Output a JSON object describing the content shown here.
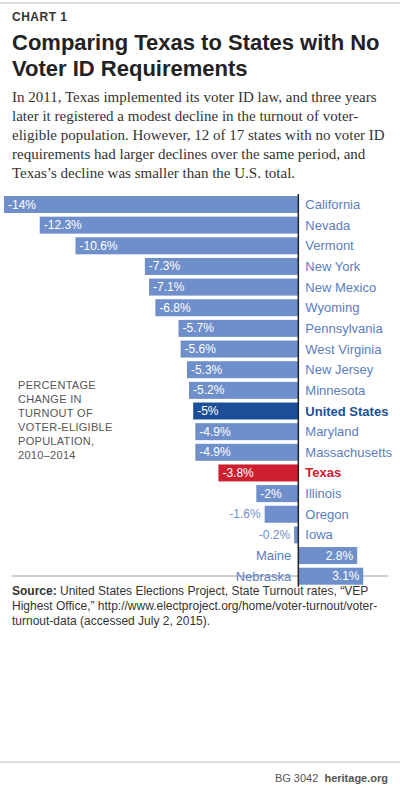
{
  "chart_data": {
    "type": "bar",
    "orientation": "horizontal",
    "chart_label": "CHART 1",
    "title": "Comparing Texas to States with No Voter ID Requirements",
    "subtitle": "In 2011, Texas implemented its voter ID law, and three years later it registered a modest decline in the turnout of voter-eligible population. However, 12 of 17 states with no voter ID requirements had larger declines over the same period, and Texas’s decline was smaller than the U.S. total.",
    "x_label": "Percentage change in turnout of voter-eligible population, 2010–2014",
    "categories": [
      "California",
      "Nevada",
      "Vermont",
      "New York",
      "New Mexico",
      "Wyoming",
      "Pennsylvania",
      "West Virginia",
      "New Jersey",
      "Minnesota",
      "United States",
      "Maryland",
      "Massachusetts",
      "Texas",
      "Illinois",
      "Oregon",
      "Iowa",
      "Maine",
      "Nebraska"
    ],
    "values": [
      -14,
      -12.3,
      -10.6,
      -7.3,
      -7.1,
      -6.8,
      -5.7,
      -5.6,
      -5.3,
      -5.2,
      -5,
      -4.9,
      -4.9,
      -3.8,
      -2,
      -1.6,
      -0.2,
      2.8,
      3.1
    ],
    "value_labels": [
      "-14%",
      "-12.3%",
      "-10.6%",
      "-7.3%",
      "-7.1%",
      "-6.8%",
      "-5.7%",
      "-5.6%",
      "-5.3%",
      "-5.2%",
      "-5%",
      "-4.9%",
      "-4.9%",
      "-3.8%",
      "-2%",
      "-1.6%",
      "-0.2%",
      "2.8%",
      "3.1%"
    ],
    "colors": [
      "#6f8fca",
      "#6f8fca",
      "#6f8fca",
      "#6f8fca",
      "#6f8fca",
      "#6f8fca",
      "#6f8fca",
      "#6f8fca",
      "#6f8fca",
      "#6f8fca",
      "#1d4f98",
      "#6f8fca",
      "#6f8fca",
      "#cc2030",
      "#6f8fca",
      "#6f8fca",
      "#6f8fca",
      "#6f8fca",
      "#6f8fca"
    ],
    "xlim": [
      -14,
      3.1
    ],
    "tick_labels": false,
    "data_labels": true,
    "grid": false,
    "source_label": "Source:",
    "source": "United States Elections Project, State Turnout rates, “VEP Highest Office,” http://www.electproject.org/home/voter-turnout/voter-turnout-data (accessed July 2, 2015).",
    "footer_code": "BG 3042",
    "footer_site": "heritage.org"
  }
}
